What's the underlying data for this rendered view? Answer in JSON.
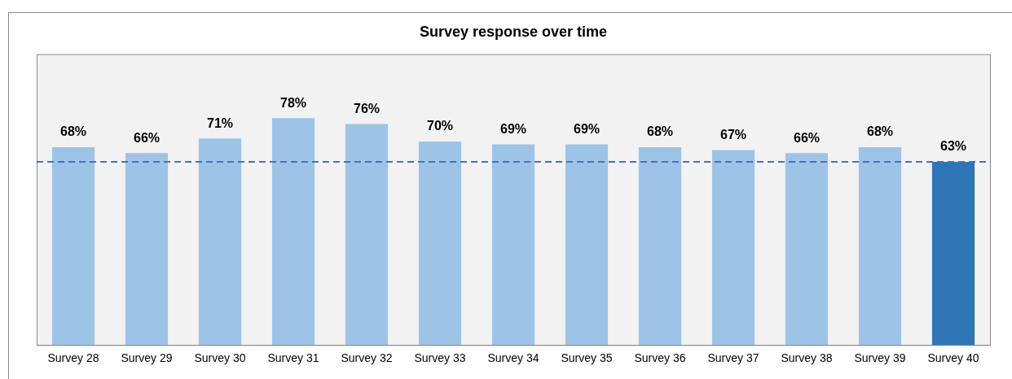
{
  "chart_data": {
    "type": "bar",
    "title": "Survey response over time",
    "categories": [
      "Survey 28",
      "Survey 29",
      "Survey 30",
      "Survey 31",
      "Survey 32",
      "Survey 33",
      "Survey 34",
      "Survey 35",
      "Survey 36",
      "Survey 37",
      "Survey 38",
      "Survey 39",
      "Survey 40"
    ],
    "values": [
      68,
      66,
      71,
      78,
      76,
      70,
      69,
      69,
      68,
      67,
      66,
      68,
      63
    ],
    "colors": [
      "#9dc3e6",
      "#9dc3e6",
      "#9dc3e6",
      "#9dc3e6",
      "#9dc3e6",
      "#9dc3e6",
      "#9dc3e6",
      "#9dc3e6",
      "#9dc3e6",
      "#9dc3e6",
      "#9dc3e6",
      "#9dc3e6",
      "#2e75b6"
    ],
    "value_labels": [
      "68%",
      "66%",
      "71%",
      "78%",
      "76%",
      "70%",
      "69%",
      "69%",
      "68%",
      "67%",
      "66%",
      "68%",
      "63%"
    ],
    "ylim": [
      0,
      100
    ],
    "tick_labels": "x",
    "grid": false,
    "legend": false,
    "ref_lines": [
      {
        "axis": "y",
        "value": 63,
        "color": "#4472c4",
        "line_style": "dashed"
      }
    ]
  }
}
